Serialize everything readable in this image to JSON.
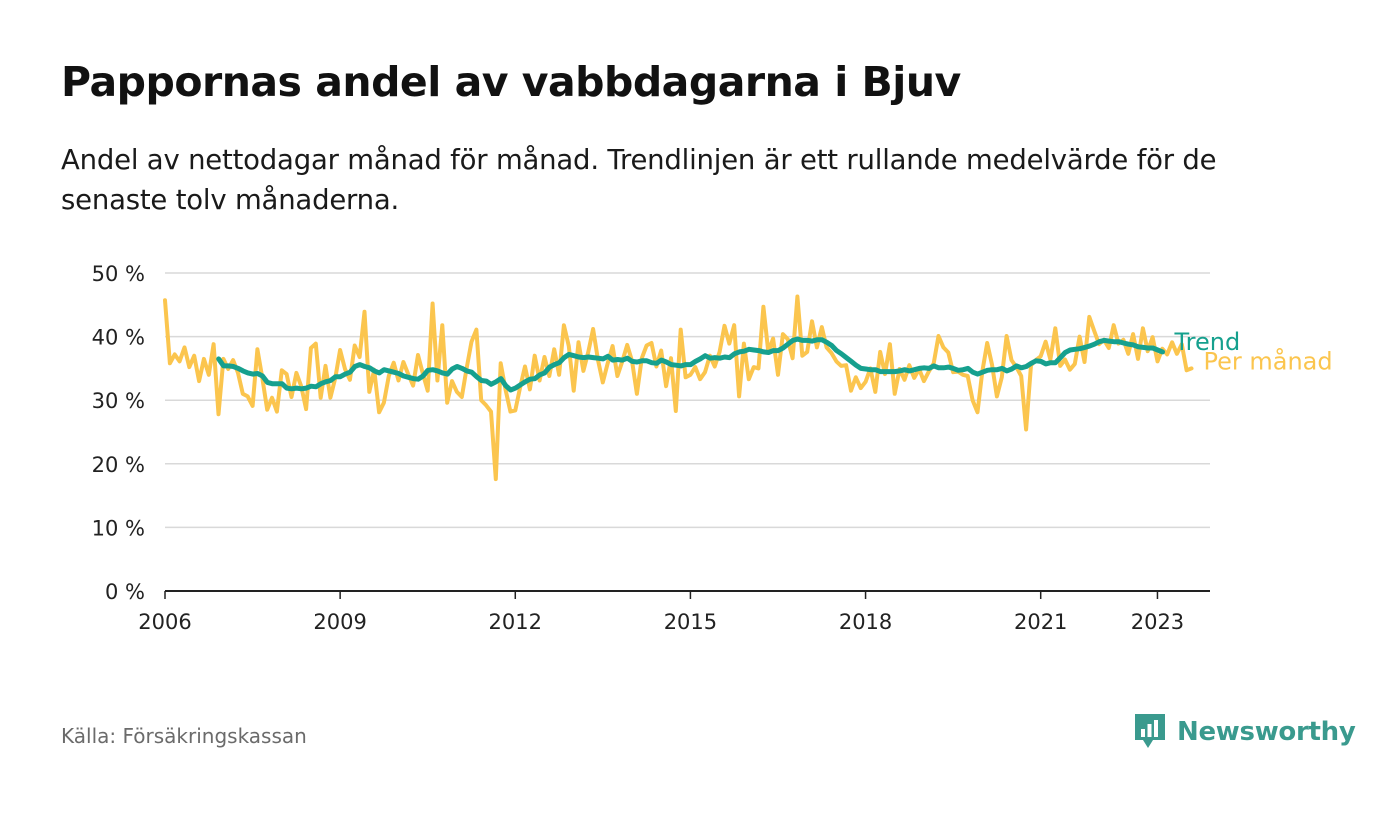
{
  "title": "Pappornas andel av vabbdagarna i Bjuv",
  "subtitle": "Andel av nettodagar månad för månad. Trendlinjen är ett rullande medelvärde för de senaste tolv månaderna.",
  "source": "Källa: Försäkringskassan",
  "brand": {
    "name": "Newsworthy",
    "icon": "newsworthy-logo-icon",
    "color": "#3a9a8e"
  },
  "chart_data": {
    "type": "line",
    "x_axis": {
      "min": 2006.0,
      "max": 2023.9,
      "ticks": [
        2006,
        2009,
        2012,
        2015,
        2018,
        2021,
        2023
      ],
      "tick_labels": [
        "2006",
        "2009",
        "2012",
        "2015",
        "2018",
        "2021",
        "2023"
      ]
    },
    "y_axis": {
      "min": 0,
      "max": 50,
      "ticks": [
        0,
        10,
        20,
        30,
        40,
        50
      ],
      "tick_labels": [
        "0 %",
        "10 %",
        "20 %",
        "30 %",
        "40 %",
        "50 %"
      ],
      "unit": "%"
    },
    "grid": true,
    "series": [
      {
        "name": "Per månad",
        "color": "#fbc54e",
        "start": 2006.0,
        "step_months": 1,
        "values": [
          45.7,
          35.8,
          37.2,
          36.1,
          38.3,
          35.2,
          37.0,
          33.0,
          36.5,
          34.0,
          38.8,
          27.8,
          36.5,
          34.9,
          36.3,
          34.3,
          31.0,
          30.6,
          29.1,
          38.0,
          33.5,
          28.5,
          30.4,
          28.2,
          34.7,
          34.1,
          30.5,
          34.3,
          32.2,
          28.6,
          38.2,
          38.9,
          30.4,
          35.4,
          30.4,
          33.5,
          37.9,
          34.9,
          33.2,
          38.6,
          36.8,
          43.9,
          31.3,
          34.8,
          28.1,
          29.6,
          33.8,
          35.9,
          33.1,
          36.0,
          34.1,
          32.3,
          37.1,
          34.2,
          31.5,
          45.2,
          33.1,
          41.8,
          29.6,
          33.0,
          31.3,
          30.5,
          35.0,
          39.2,
          41.1,
          30.0,
          29.2,
          28.2,
          17.6,
          35.8,
          31.7,
          28.2,
          28.4,
          32.0,
          35.3,
          31.7,
          37.0,
          33.1,
          36.8,
          33.8,
          38.0,
          34.0,
          41.8,
          38.5,
          31.5,
          39.1,
          34.6,
          37.6,
          41.2,
          36.3,
          32.8,
          35.8,
          38.5,
          33.8,
          36.1,
          38.7,
          36.2,
          31.0,
          36.6,
          38.6,
          39.0,
          35.3,
          37.8,
          32.2,
          36.6,
          28.3,
          41.1,
          33.6,
          34.0,
          35.2,
          33.3,
          34.4,
          37.0,
          35.3,
          37.6,
          41.7,
          38.9,
          41.8,
          30.6,
          38.9,
          33.3,
          35.2,
          35.0,
          44.7,
          37.6,
          39.7,
          34.0,
          40.4,
          39.6,
          36.6,
          46.3,
          37.0,
          37.6,
          42.4,
          38.3,
          41.5,
          38.3,
          37.4,
          36.1,
          35.4,
          35.5,
          31.5,
          33.6,
          31.9,
          32.9,
          35.0,
          31.3,
          37.6,
          34.1,
          38.8,
          31.0,
          34.9,
          33.2,
          35.5,
          33.5,
          34.9,
          33.0,
          34.5,
          35.8,
          40.1,
          38.3,
          37.5,
          34.4,
          34.5,
          34.0,
          33.8,
          30.0,
          28.1,
          34.5,
          39.0,
          35.6,
          30.6,
          33.6,
          40.1,
          36.3,
          35.2,
          33.8,
          25.4,
          35.5,
          36.3,
          36.9,
          39.2,
          36.4,
          41.3,
          35.4,
          36.4,
          34.8,
          35.7,
          40.0,
          36.0,
          43.1,
          40.9,
          38.8,
          39.5,
          38.2,
          41.8,
          38.9,
          39.5,
          37.3,
          40.4,
          36.5,
          41.3,
          37.7,
          39.9,
          36.1,
          38.1,
          37.2,
          39.1,
          37.3,
          38.8,
          34.7,
          35.0
        ]
      },
      {
        "name": "Trend",
        "color": "#16a08e",
        "start": 2006.92,
        "step_months": 1,
        "values": [
          36.5,
          35.4,
          35.4,
          35.3,
          35.0,
          34.6,
          34.3,
          34.1,
          34.2,
          33.8,
          32.8,
          32.6,
          32.6,
          32.6,
          31.9,
          31.8,
          31.9,
          31.8,
          31.9,
          32.2,
          32.1,
          32.6,
          32.9,
          33.1,
          33.7,
          33.7,
          34.1,
          34.4,
          35.3,
          35.6,
          35.3,
          35.1,
          34.6,
          34.3,
          34.8,
          34.6,
          34.4,
          34.2,
          33.8,
          33.6,
          33.4,
          33.3,
          33.8,
          34.7,
          34.8,
          34.6,
          34.3,
          34.1,
          34.9,
          35.3,
          35.0,
          34.6,
          34.4,
          33.7,
          33.1,
          33.0,
          32.5,
          32.9,
          33.4,
          32.3,
          31.6,
          31.9,
          32.4,
          32.9,
          33.3,
          33.4,
          34.0,
          34.3,
          35.2,
          35.6,
          35.9,
          36.7,
          37.2,
          37.0,
          36.8,
          36.7,
          36.8,
          36.7,
          36.6,
          36.5,
          36.9,
          36.3,
          36.4,
          36.3,
          36.6,
          36.1,
          36.0,
          36.2,
          36.2,
          35.9,
          35.8,
          36.3,
          36.0,
          35.6,
          35.5,
          35.4,
          35.6,
          35.6,
          36.1,
          36.5,
          37.0,
          36.6,
          36.7,
          36.6,
          36.8,
          36.7,
          37.3,
          37.6,
          37.7,
          38.0,
          37.9,
          37.8,
          37.6,
          37.5,
          37.8,
          37.8,
          38.2,
          38.8,
          39.4,
          39.6,
          39.4,
          39.4,
          39.3,
          39.5,
          39.5,
          39.1,
          38.6,
          37.8,
          37.3,
          36.7,
          36.1,
          35.5,
          35.0,
          34.9,
          34.8,
          34.8,
          34.5,
          34.5,
          34.5,
          34.5,
          34.6,
          34.8,
          34.6,
          34.8,
          35.0,
          35.1,
          35.0,
          35.4,
          35.1,
          35.1,
          35.2,
          35.0,
          34.7,
          34.8,
          35.0,
          34.4,
          34.1,
          34.4,
          34.7,
          34.8,
          34.8,
          35.0,
          34.6,
          34.9,
          35.4,
          35.1,
          35.3,
          35.8,
          36.2,
          36.1,
          35.7,
          35.9,
          35.9,
          36.7,
          37.5,
          37.9,
          38.0,
          38.1,
          38.3,
          38.5,
          38.8,
          39.2,
          39.4,
          39.3,
          39.2,
          39.2,
          39.0,
          38.8,
          38.7,
          38.4,
          38.3,
          38.2,
          38.2,
          37.9,
          37.6
        ]
      }
    ]
  }
}
